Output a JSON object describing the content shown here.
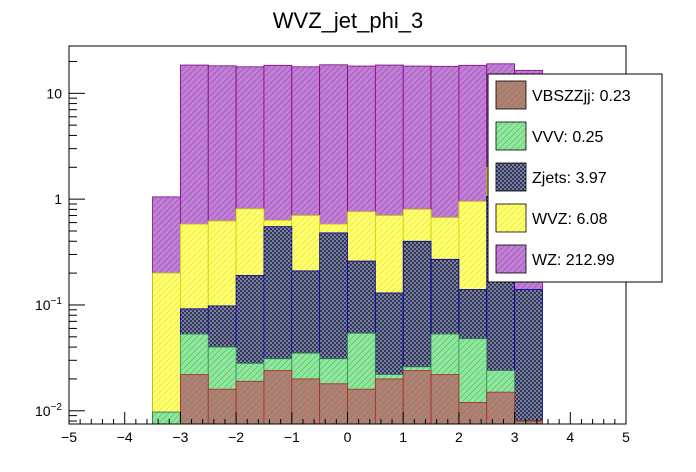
{
  "chart_data": {
    "type": "bar",
    "subtype": "stacked-histogram",
    "title": "WVZ_jet_phi_3",
    "xlabel": "",
    "ylabel": "",
    "xlim": [
      -5,
      5
    ],
    "ylim": [
      0.0075,
      28
    ],
    "yscale": "log",
    "bin_edges": [
      -3.5,
      -3.0,
      -2.5,
      -2.0,
      -1.5,
      -1.0,
      -0.5,
      0.0,
      0.5,
      1.0,
      1.5,
      2.0,
      2.5,
      3.0,
      3.5
    ],
    "x_ticks": [
      "−5",
      "−4",
      "−3",
      "−2",
      "−1",
      "0",
      "1",
      "2",
      "3",
      "4",
      "5"
    ],
    "y_ticks": [
      {
        "value": 0.01,
        "base": "10",
        "exp": "−2"
      },
      {
        "value": 0.1,
        "base": "10",
        "exp": "−1"
      },
      {
        "value": 1,
        "label": "1"
      },
      {
        "value": 10,
        "label": "10"
      }
    ],
    "stack_totals": [
      {
        "name": "VBSZZjj",
        "values": [
          0.0075,
          0.022,
          0.016,
          0.019,
          0.024,
          0.02,
          0.018,
          0.016,
          0.02,
          0.024,
          0.022,
          0.012,
          0.015,
          0.008
        ]
      },
      {
        "name": "VVV",
        "values": [
          0.0097,
          0.053,
          0.04,
          0.028,
          0.031,
          0.035,
          0.031,
          0.054,
          0.022,
          0.026,
          0.053,
          0.048,
          0.024,
          0.008
        ]
      },
      {
        "name": "Zjets",
        "values": [
          0.0097,
          0.092,
          0.098,
          0.19,
          0.55,
          0.21,
          0.48,
          0.26,
          0.13,
          0.4,
          0.27,
          0.14,
          1.06,
          0.14
        ]
      },
      {
        "name": "WVZ",
        "values": [
          0.2,
          0.58,
          0.62,
          0.81,
          0.63,
          0.7,
          0.58,
          0.76,
          0.7,
          0.8,
          0.67,
          0.95,
          2.0,
          0.1
        ]
      },
      {
        "name": "WZ",
        "values": [
          1.05,
          18.5,
          18.2,
          17.8,
          18.4,
          17.8,
          18.6,
          18.1,
          18.5,
          18.1,
          18.0,
          18.4,
          19.0,
          16.5
        ]
      }
    ],
    "legend": [
      {
        "label": "VBSZZjj: 0.23",
        "color": "#9f7a6b",
        "pattern": "wave",
        "stroke": "#a52a2a"
      },
      {
        "label": "VVV: 0.25",
        "color": "#8ee58e",
        "pattern": "wave",
        "stroke": "#2e8b57"
      },
      {
        "label": "Zjets: 3.97",
        "color": "#2b2f55",
        "pattern": "dots",
        "stroke": "#0000aa"
      },
      {
        "label": "WVZ: 6.08",
        "color": "#ffff66",
        "pattern": "wave",
        "stroke": "#cccc00"
      },
      {
        "label": "WZ: 212.99",
        "color": "#bb7ad2",
        "pattern": "wave",
        "stroke": "#800080"
      }
    ],
    "legend_position": "top-right"
  }
}
